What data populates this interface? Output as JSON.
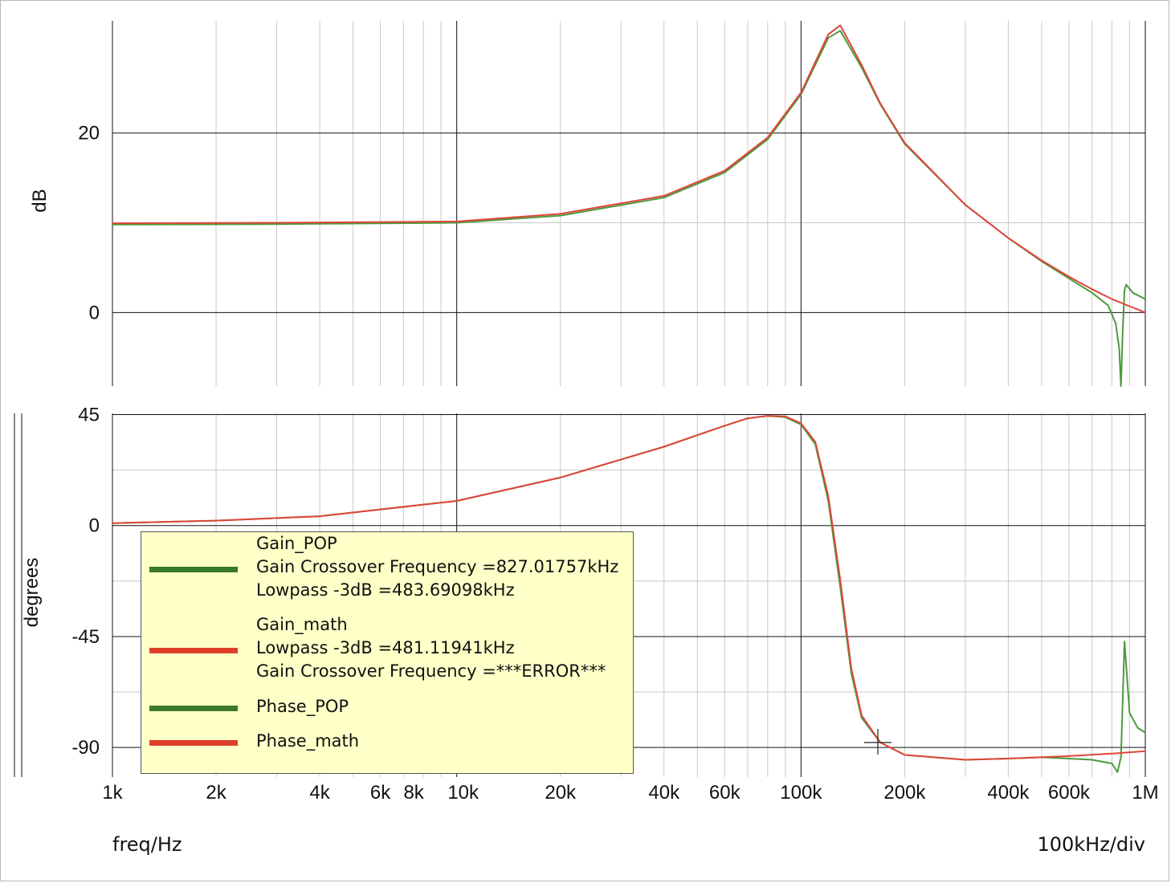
{
  "x_axis": {
    "label": "freq/Hz",
    "scale_note": "100kHz/div",
    "tick_labels": [
      "1k",
      "2k",
      "4k",
      "6k",
      "8k",
      "10k",
      "20k",
      "40k",
      "60k",
      "100k",
      "200k",
      "400k",
      "600k",
      "1M"
    ]
  },
  "top_panel": {
    "ylabel": "dB",
    "tick_labels": [
      "20",
      "0"
    ]
  },
  "bottom_panel": {
    "ylabel": "degrees",
    "tick_labels": [
      "45",
      "0",
      "-45",
      "-90"
    ]
  },
  "legend": {
    "items": [
      {
        "name": "Gain_POP",
        "color": "#3a7a28",
        "lines": [
          "Gain_POP",
          "Gain Crossover Frequency =827.01757kHz",
          "Lowpass -3dB =483.69098kHz"
        ]
      },
      {
        "name": "Gain_math",
        "color": "#e0402a",
        "lines": [
          "Gain_math",
          "Lowpass -3dB =481.11941kHz",
          "Gain Crossover Frequency =***ERROR***"
        ]
      },
      {
        "name": "Phase_POP",
        "color": "#3a7a28",
        "lines": [
          "Phase_POP"
        ]
      },
      {
        "name": "Phase_math",
        "color": "#e0402a",
        "lines": [
          "Phase_math"
        ]
      }
    ]
  },
  "chart_data": [
    {
      "type": "line",
      "xscale": "log",
      "xlim": [
        1000,
        1000000
      ],
      "ylim": [
        -8.2,
        32.5
      ],
      "ylabel": "dB",
      "grid": true,
      "series": [
        {
          "name": "Gain_POP",
          "color": "#4c9a3e",
          "points": [
            [
              1000,
              9.8
            ],
            [
              3000,
              9.85
            ],
            [
              10000,
              10.0
            ],
            [
              20000,
              10.8
            ],
            [
              40000,
              12.8
            ],
            [
              60000,
              15.6
            ],
            [
              80000,
              19.3
            ],
            [
              100000,
              24.3
            ],
            [
              120000,
              30.6
            ],
            [
              130000,
              31.4
            ],
            [
              150000,
              27.3
            ],
            [
              170000,
              23.2
            ],
            [
              200000,
              18.8
            ],
            [
              300000,
              12.0
            ],
            [
              400000,
              8.3
            ],
            [
              500000,
              5.7
            ],
            [
              600000,
              3.8
            ],
            [
              700000,
              2.2
            ],
            [
              780000,
              0.8
            ],
            [
              820000,
              -1.2
            ],
            [
              840000,
              -4.0
            ],
            [
              850000,
              -8.2
            ],
            [
              860000,
              -2.0
            ],
            [
              870000,
              2.5
            ],
            [
              880000,
              3.1
            ],
            [
              920000,
              2.2
            ],
            [
              1000000,
              1.5
            ]
          ]
        },
        {
          "name": "Gain_math",
          "color": "#e0453a",
          "points": [
            [
              1000,
              9.95
            ],
            [
              3000,
              10.0
            ],
            [
              10000,
              10.15
            ],
            [
              20000,
              11.0
            ],
            [
              40000,
              13.0
            ],
            [
              60000,
              15.8
            ],
            [
              80000,
              19.5
            ],
            [
              100000,
              24.5
            ],
            [
              120000,
              31.0
            ],
            [
              130000,
              32.0
            ],
            [
              150000,
              27.6
            ],
            [
              170000,
              23.3
            ],
            [
              200000,
              18.9
            ],
            [
              300000,
              12.0
            ],
            [
              400000,
              8.3
            ],
            [
              500000,
              5.8
            ],
            [
              600000,
              4.0
            ],
            [
              700000,
              2.6
            ],
            [
              800000,
              1.5
            ],
            [
              900000,
              0.7
            ],
            [
              1000000,
              0.0
            ]
          ]
        }
      ]
    },
    {
      "type": "line",
      "xscale": "log",
      "xlim": [
        1000,
        1000000
      ],
      "ylim": [
        -102,
        45.5
      ],
      "ylabel": "degrees",
      "grid": true,
      "series": [
        {
          "name": "Phase_POP",
          "color": "#4c9a3e",
          "points": [
            [
              1000,
              1
            ],
            [
              2000,
              2
            ],
            [
              4000,
              3.8
            ],
            [
              10000,
              10
            ],
            [
              20000,
              19.5
            ],
            [
              40000,
              32
            ],
            [
              60000,
              40.5
            ],
            [
              70000,
              43.5
            ],
            [
              80000,
              44.5
            ],
            [
              90000,
              44
            ],
            [
              100000,
              41
            ],
            [
              110000,
              33
            ],
            [
              120000,
              10
            ],
            [
              130000,
              -25
            ],
            [
              140000,
              -60
            ],
            [
              150000,
              -78
            ],
            [
              170000,
              -88
            ],
            [
              200000,
              -93
            ],
            [
              300000,
              -95
            ],
            [
              400000,
              -94.5
            ],
            [
              500000,
              -94
            ],
            [
              600000,
              -94.5
            ],
            [
              700000,
              -95
            ],
            [
              800000,
              -96.5
            ],
            [
              830000,
              -100
            ],
            [
              850000,
              -94
            ],
            [
              870000,
              -47
            ],
            [
              900000,
              -76
            ],
            [
              950000,
              -82
            ],
            [
              1000000,
              -84
            ]
          ]
        },
        {
          "name": "Phase_math",
          "color": "#e0453a",
          "points": [
            [
              1000,
              1
            ],
            [
              2000,
              2
            ],
            [
              4000,
              3.8
            ],
            [
              10000,
              10
            ],
            [
              20000,
              19.5
            ],
            [
              40000,
              32
            ],
            [
              60000,
              40.5
            ],
            [
              70000,
              43.5
            ],
            [
              80000,
              44.5
            ],
            [
              90000,
              44.3
            ],
            [
              100000,
              41.5
            ],
            [
              110000,
              34
            ],
            [
              120000,
              12
            ],
            [
              130000,
              -22
            ],
            [
              140000,
              -58
            ],
            [
              150000,
              -77
            ],
            [
              170000,
              -88
            ],
            [
              200000,
              -93
            ],
            [
              300000,
              -95
            ],
            [
              400000,
              -94.5
            ],
            [
              600000,
              -93.5
            ],
            [
              800000,
              -92.5
            ],
            [
              1000000,
              -91.5
            ]
          ]
        }
      ]
    }
  ]
}
